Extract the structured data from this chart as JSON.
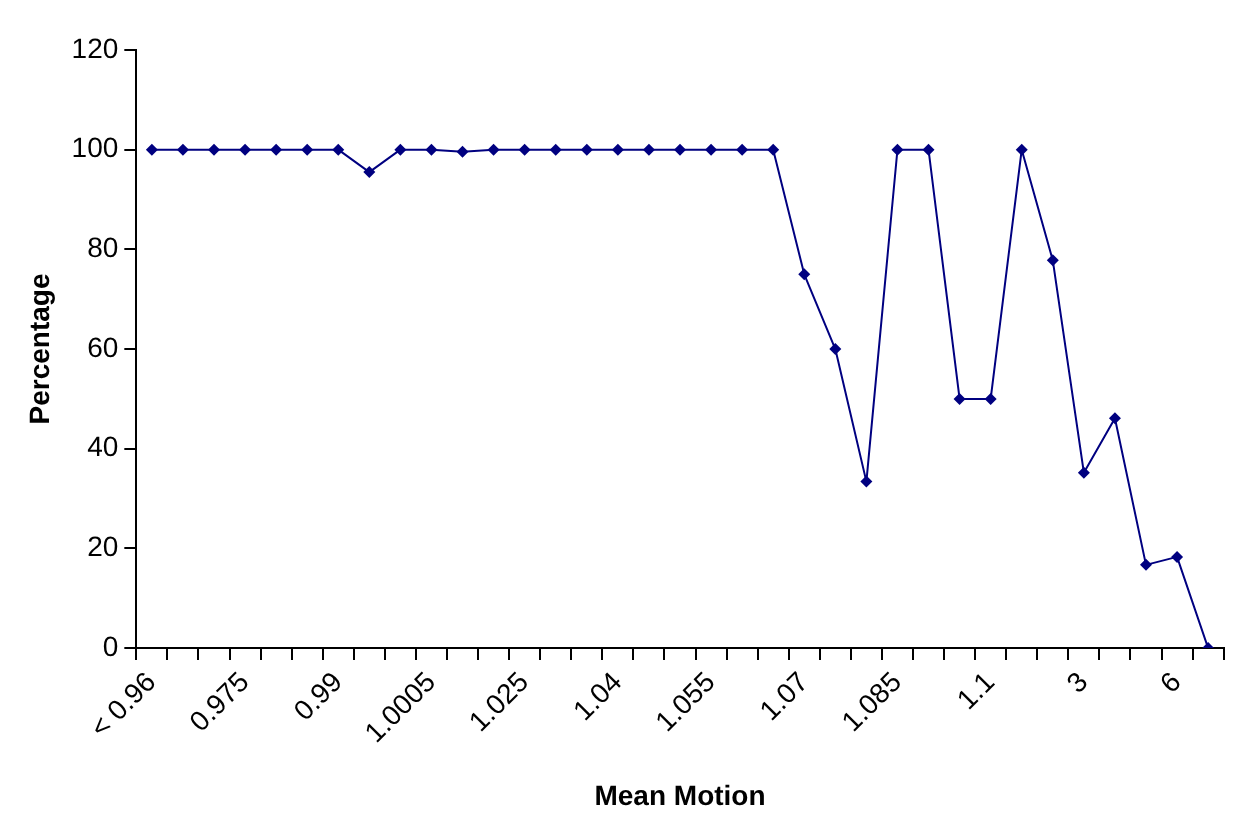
{
  "chart_data": {
    "type": "line",
    "xlabel": "Mean Motion",
    "ylabel": "Percentage",
    "categories": [
      "< 0.96",
      null,
      null,
      "0.975",
      null,
      null,
      "0.99",
      null,
      null,
      "1.0005",
      null,
      null,
      "1.025",
      null,
      null,
      "1.04",
      null,
      null,
      "1.055",
      null,
      null,
      "1.07",
      null,
      null,
      "1.085",
      null,
      null,
      "1.1",
      null,
      null,
      "3",
      null,
      null,
      "6",
      null
    ],
    "series": [
      {
        "color": "#000080",
        "values": [
          100,
          100,
          100,
          100,
          100,
          100,
          100,
          95.5,
          100,
          100,
          99.6,
          100,
          100,
          100,
          100,
          100,
          100,
          100,
          100,
          100,
          100,
          75,
          60,
          33.4,
          100,
          100,
          50,
          50,
          100,
          77.8,
          35.2,
          46.1,
          16.7,
          18.3,
          0
        ]
      }
    ],
    "ylim": [
      0,
      120
    ],
    "yticks": [
      0,
      20,
      40,
      60,
      80,
      100,
      120
    ],
    "grid": false,
    "legend": false,
    "marker": "diamond",
    "line_style": "solid"
  }
}
